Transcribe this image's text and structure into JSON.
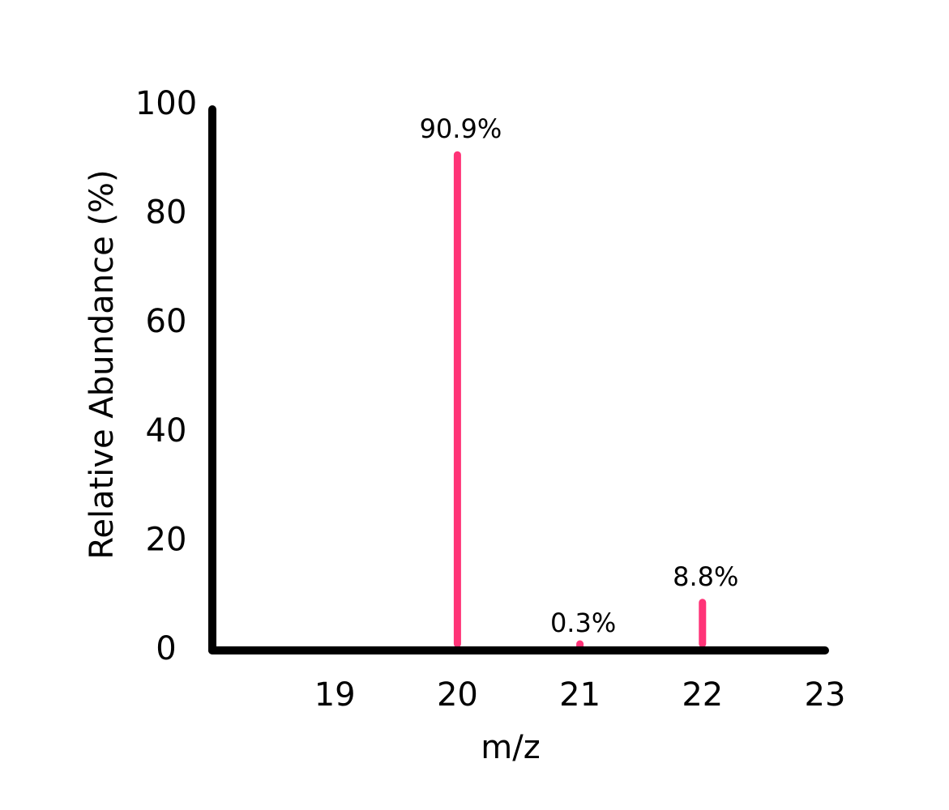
{
  "chart_data": {
    "type": "stem",
    "x_label": "m/z",
    "y_label": "Relative Abundance (%)",
    "x": [
      20,
      21,
      22
    ],
    "values": [
      90.9,
      0.3,
      8.8
    ],
    "value_labels": [
      "90.9%",
      "0.3%",
      "8.8%"
    ],
    "color": "#ff3377",
    "xlim": [
      18,
      23
    ],
    "xticks": [
      19,
      20,
      21,
      22,
      23
    ],
    "ylim": [
      0,
      100
    ],
    "yticks": [
      0,
      20,
      40,
      60,
      80,
      100
    ],
    "grid": false
  }
}
